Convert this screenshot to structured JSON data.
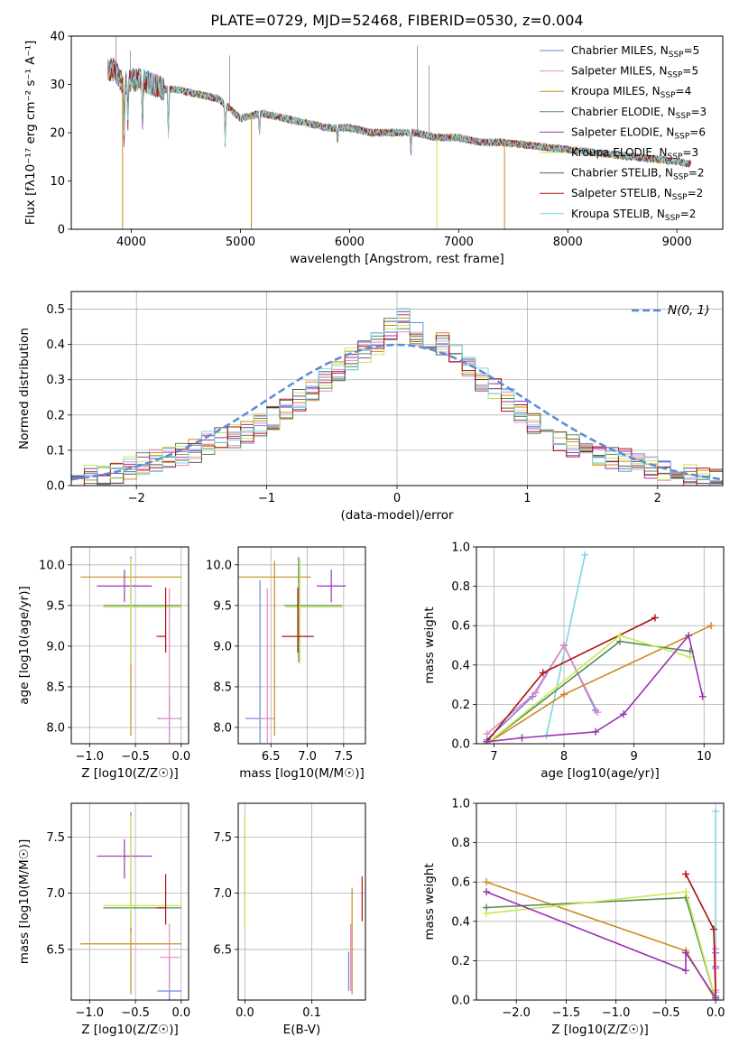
{
  "title": "PLATE=0729, MJD=52468, FIBERID=0530, z=0.004",
  "legend_items": [
    {
      "name": "Chabrier MILES",
      "nssp": "5",
      "color": "#6b86e0"
    },
    {
      "name": "Salpeter MILES",
      "nssp": "5",
      "color": "#e68ac7"
    },
    {
      "name": "Kroupa MILES",
      "nssp": "4",
      "color": "#cc8a1e"
    },
    {
      "name": "Chabrier ELODIE",
      "nssp": "3",
      "color": "#5a8a5a"
    },
    {
      "name": "Salpeter ELODIE",
      "nssp": "6",
      "color": "#9a33b0"
    },
    {
      "name": "Kroupa ELODIE",
      "nssp": "3",
      "color": "#c6ea55"
    },
    {
      "name": "Chabrier STELIB",
      "nssp": "2",
      "color": "#5a5a5a"
    },
    {
      "name": "Salpeter STELIB",
      "nssp": "2",
      "color": "#b01010"
    },
    {
      "name": "Kroupa STELIB",
      "nssp": "2",
      "color": "#7fd6e0"
    }
  ],
  "legend_nssp_prefix": "N",
  "legend_nssp_sub": "SSP",
  "legend_nssp_eq": "=",
  "chart_data": [
    {
      "id": "spectrum",
      "type": "line",
      "xlabel": "wavelength [Angstrom, rest frame]",
      "ylabel": "Flux [fλ10⁻¹⁷ erg cm⁻² s⁻¹ A⁻¹]",
      "xlim": [
        3450,
        9420
      ],
      "ylim": [
        0,
        40
      ],
      "xticks": [
        4000,
        5000,
        6000,
        7000,
        8000,
        9000
      ],
      "yticks": [
        0,
        10,
        20,
        30,
        40
      ],
      "x": [
        3780,
        3850,
        3930,
        4000,
        4100,
        4200,
        4300,
        4400,
        4600,
        4800,
        5000,
        5200,
        5400,
        5600,
        5800,
        6000,
        6200,
        6400,
        6600,
        6800,
        7000,
        7200,
        7400,
        7600,
        7800,
        8000,
        8200,
        8400,
        8600,
        8800,
        9000,
        9130
      ],
      "y": [
        33,
        33,
        30,
        31,
        31,
        30,
        29,
        29,
        28,
        27,
        23,
        24,
        23,
        22,
        21,
        21,
        20,
        20,
        20,
        19,
        19,
        18,
        18,
        17.5,
        17,
        16.5,
        16,
        15.5,
        15,
        14.5,
        14,
        13.5
      ]
    },
    {
      "id": "residuals",
      "type": "histogram",
      "xlabel": "(data-model)/error",
      "ylabel": "Normed distribution",
      "xlim": [
        -2.5,
        2.5
      ],
      "ylim": [
        0,
        0.55
      ],
      "xticks": [
        -2,
        -1,
        0,
        1,
        2
      ],
      "yticks": [
        0.0,
        0.1,
        0.2,
        0.3,
        0.4,
        0.5
      ],
      "bin_width": 0.1,
      "bin_start": -2.5,
      "values": [
        0.02,
        0.03,
        0.03,
        0.04,
        0.05,
        0.06,
        0.07,
        0.08,
        0.09,
        0.1,
        0.12,
        0.13,
        0.14,
        0.15,
        0.17,
        0.19,
        0.21,
        0.24,
        0.27,
        0.3,
        0.33,
        0.36,
        0.38,
        0.4,
        0.44,
        0.47,
        0.43,
        0.41,
        0.4,
        0.37,
        0.33,
        0.3,
        0.27,
        0.24,
        0.21,
        0.18,
        0.15,
        0.13,
        0.11,
        0.1,
        0.09,
        0.08,
        0.07,
        0.06,
        0.05,
        0.04,
        0.04,
        0.03,
        0.02,
        0.02
      ],
      "gaussian_label": "N(0, 1)"
    },
    {
      "id": "age_vs_z",
      "type": "errorbar",
      "xlabel": "Z [log10(Z/Z☉)]",
      "ylabel": "age  [log10(age/yr)]",
      "xlim": [
        -1.2,
        0.08
      ],
      "ylim": [
        7.8,
        10.22
      ],
      "xticks": [
        -1.0,
        -0.5,
        0.0
      ],
      "yticks": [
        8.0,
        8.5,
        9.0,
        9.5,
        10.0
      ],
      "points": [
        {
          "x": -0.13,
          "xerr": [
            0.13,
            0.13
          ],
          "y": 8.11,
          "yerr": [
            0.3,
            0.3
          ],
          "color": "#6b86e0"
        },
        {
          "x": -0.13,
          "xerr": [
            0.1,
            0.1
          ],
          "y": 8.11,
          "yerr": [
            0.35,
            1.6
          ],
          "color": "#e68ac7"
        },
        {
          "x": -0.55,
          "xerr": [
            0.55,
            0.55
          ],
          "y": 9.85,
          "yerr": [
            1.95,
            0.2
          ],
          "color": "#cc8a1e"
        },
        {
          "x": -0.55,
          "xerr": [
            0.3,
            0.55
          ],
          "y": 9.5,
          "yerr": [
            0.7,
            0.6
          ],
          "color": "#5a8a5a"
        },
        {
          "x": -0.62,
          "xerr": [
            0.3,
            0.3
          ],
          "y": 9.74,
          "yerr": [
            0.2,
            0.2
          ],
          "color": "#9a33b0"
        },
        {
          "x": -0.55,
          "xerr": [
            0.3,
            0.55
          ],
          "y": 9.48,
          "yerr": [
            0.7,
            0.6
          ],
          "color": "#c6ea55"
        },
        {
          "x": -0.17,
          "xerr": [
            0.1,
            0.0
          ],
          "y": 9.12,
          "yerr": [
            0.2,
            0.6
          ],
          "color": "#b01010"
        }
      ]
    },
    {
      "id": "age_vs_mass",
      "type": "errorbar",
      "xlabel": "mass [log10(M/M☉)]",
      "ylabel": "",
      "xlim": [
        6.05,
        7.8
      ],
      "ylim": [
        7.8,
        10.22
      ],
      "xticks": [
        6.5,
        7.0,
        7.5
      ],
      "yticks": [
        8.0,
        8.5,
        9.0,
        9.5,
        10.0
      ],
      "points": [
        {
          "x": 6.35,
          "xerr": [
            0.2,
            0.2
          ],
          "y": 8.11,
          "yerr": [
            0.3,
            1.7
          ],
          "color": "#6b86e0"
        },
        {
          "x": 6.45,
          "xerr": [
            0.1,
            0.1
          ],
          "y": 8.11,
          "yerr": [
            0.3,
            1.6
          ],
          "color": "#e68ac7"
        },
        {
          "x": 6.55,
          "xerr": [
            0.5,
            0.5
          ],
          "y": 9.85,
          "yerr": [
            1.95,
            0.2
          ],
          "color": "#cc8a1e"
        },
        {
          "x": 6.88,
          "xerr": [
            0.2,
            0.6
          ],
          "y": 9.5,
          "yerr": [
            0.7,
            0.6
          ],
          "color": "#5a8a5a"
        },
        {
          "x": 7.33,
          "xerr": [
            0.2,
            0.2
          ],
          "y": 9.74,
          "yerr": [
            0.2,
            0.2
          ],
          "color": "#9a33b0"
        },
        {
          "x": 6.9,
          "xerr": [
            0.2,
            0.6
          ],
          "y": 9.48,
          "yerr": [
            0.7,
            0.6
          ],
          "color": "#c6ea55"
        },
        {
          "x": 6.87,
          "xerr": [
            0.22,
            0.22
          ],
          "y": 9.12,
          "yerr": [
            0.2,
            0.6
          ],
          "color": "#b01010"
        }
      ]
    },
    {
      "id": "weight_vs_age",
      "type": "line",
      "xlabel": "age  [log10(age/yr)]",
      "ylabel": "mass weight",
      "xlim": [
        6.75,
        10.28
      ],
      "ylim": [
        0,
        1
      ],
      "xticks": [
        7,
        8,
        9,
        10
      ],
      "yticks": [
        0.0,
        0.2,
        0.4,
        0.6,
        0.8,
        1.0
      ],
      "series": [
        {
          "color": "#7fd6e0",
          "x": [
            7.75,
            8.3
          ],
          "y": [
            0.04,
            0.96
          ]
        },
        {
          "color": "#6b86e0",
          "x": [
            6.9,
            7.55,
            8.0,
            8.45
          ],
          "y": [
            0.02,
            0.24,
            0.5,
            0.17
          ]
        },
        {
          "color": "#e68ac7",
          "x": [
            6.9,
            7.6,
            8.0,
            8.48
          ],
          "y": [
            0.05,
            0.26,
            0.5,
            0.16
          ]
        },
        {
          "color": "#b01010",
          "x": [
            6.9,
            7.7,
            9.3
          ],
          "y": [
            0.01,
            0.36,
            0.64
          ]
        },
        {
          "color": "#cc8a1e",
          "x": [
            6.9,
            8.0,
            10.1
          ],
          "y": [
            0.0,
            0.25,
            0.6
          ]
        },
        {
          "color": "#5a8a5a",
          "x": [
            6.9,
            8.8,
            9.8
          ],
          "y": [
            0.0,
            0.52,
            0.47
          ]
        },
        {
          "color": "#c6ea55",
          "x": [
            6.9,
            8.8,
            9.8
          ],
          "y": [
            0.0,
            0.55,
            0.44
          ]
        },
        {
          "color": "#9a33b0",
          "x": [
            6.9,
            7.4,
            8.45,
            8.85,
            9.78,
            9.98
          ],
          "y": [
            0.01,
            0.03,
            0.06,
            0.15,
            0.55,
            0.24
          ]
        }
      ]
    },
    {
      "id": "mass_vs_z",
      "type": "errorbar",
      "xlabel": "Z [log10(Z/Z☉)]",
      "ylabel": "mass [log10(M/M☉)]",
      "xlim": [
        -1.2,
        0.08
      ],
      "ylim": [
        6.05,
        7.8
      ],
      "xticks": [
        -1.0,
        -0.5,
        0.0
      ],
      "yticks": [
        6.5,
        7.0,
        7.5
      ],
      "points": [
        {
          "x": -0.13,
          "xerr": [
            0.13,
            0.13
          ],
          "y": 6.13,
          "yerr": [
            0.1,
            0.3
          ],
          "color": "#6b86e0"
        },
        {
          "x": -0.13,
          "xerr": [
            0.1,
            0.12
          ],
          "y": 6.43,
          "yerr": [
            0.3,
            0.3
          ],
          "color": "#e68ac7"
        },
        {
          "x": -0.55,
          "xerr": [
            0.55,
            0.55
          ],
          "y": 6.55,
          "yerr": [
            0.45,
            0.5
          ],
          "color": "#cc8a1e"
        },
        {
          "x": -0.55,
          "xerr": [
            0.3,
            0.55
          ],
          "y": 6.87,
          "yerr": [
            0.2,
            0.85
          ],
          "color": "#5a8a5a"
        },
        {
          "x": -0.62,
          "xerr": [
            0.3,
            0.3
          ],
          "y": 7.33,
          "yerr": [
            0.2,
            0.15
          ],
          "color": "#9a33b0"
        },
        {
          "x": -0.55,
          "xerr": [
            0.3,
            0.55
          ],
          "y": 6.89,
          "yerr": [
            0.2,
            0.8
          ],
          "color": "#c6ea55"
        },
        {
          "x": -0.17,
          "xerr": [
            0.1,
            0.0
          ],
          "y": 6.87,
          "yerr": [
            0.15,
            0.3
          ],
          "color": "#b01010"
        }
      ]
    },
    {
      "id": "mass_vs_ebv",
      "type": "errorbar",
      "xlabel": "E(B-V)",
      "ylabel": "",
      "xlim": [
        -0.01,
        0.18
      ],
      "ylim": [
        6.05,
        7.8
      ],
      "xticks": [
        0.0,
        0.1
      ],
      "yticks": [
        6.5,
        7.0,
        7.5
      ],
      "points": [
        {
          "x": 0.155,
          "xerr": [
            0,
            0
          ],
          "y": 6.13,
          "yerr": [
            0.0,
            0.35
          ],
          "color": "#6b86e0"
        },
        {
          "x": 0.158,
          "xerr": [
            0,
            0
          ],
          "y": 6.43,
          "yerr": [
            0.3,
            0.3
          ],
          "color": "#e68ac7"
        },
        {
          "x": 0.16,
          "xerr": [
            0,
            0
          ],
          "y": 6.55,
          "yerr": [
            0.45,
            0.5
          ],
          "color": "#cc8a1e"
        },
        {
          "x": 0.0,
          "xerr": [
            0,
            0
          ],
          "y": 7.2,
          "yerr": [
            0.5,
            0.5
          ],
          "color": "#5a8a5a"
        },
        {
          "x": 0.0,
          "xerr": [
            0,
            0
          ],
          "y": 7.2,
          "yerr": [
            0.5,
            0.5
          ],
          "color": "#c6ea55"
        },
        {
          "x": 0.175,
          "xerr": [
            0,
            0
          ],
          "y": 6.95,
          "yerr": [
            0.2,
            0.2
          ],
          "color": "#b01010"
        }
      ]
    },
    {
      "id": "weight_vs_z",
      "type": "line",
      "xlabel": "Z [log10(Z/Z☉)]",
      "ylabel": "mass weight",
      "xlim": [
        -2.4,
        0.08
      ],
      "ylim": [
        0,
        1
      ],
      "xticks": [
        -2.0,
        -1.5,
        -1.0,
        -0.5,
        0.0
      ],
      "yticks": [
        0.0,
        0.2,
        0.4,
        0.6,
        0.8,
        1.0
      ],
      "series": [
        {
          "color": "#7fd6e0",
          "x": [
            0.0,
            0.0
          ],
          "y": [
            0.04,
            0.96
          ]
        },
        {
          "color": "#6b86e0",
          "x": [
            0.0,
            0.0,
            0.0
          ],
          "y": [
            0.02,
            0.24,
            0.17
          ]
        },
        {
          "color": "#e68ac7",
          "x": [
            0.0,
            0.0,
            0.0
          ],
          "y": [
            0.05,
            0.26,
            0.16
          ]
        },
        {
          "color": "#b01010",
          "x": [
            -0.3,
            -0.02,
            0.0
          ],
          "y": [
            0.64,
            0.36,
            0.01
          ]
        },
        {
          "color": "#cc8a1e",
          "x": [
            -2.3,
            -0.3,
            0.0
          ],
          "y": [
            0.6,
            0.25,
            0.0
          ]
        },
        {
          "color": "#5a8a5a",
          "x": [
            -2.3,
            -0.3,
            0.0
          ],
          "y": [
            0.47,
            0.52,
            0.0
          ]
        },
        {
          "color": "#c6ea55",
          "x": [
            -2.3,
            -0.3,
            0.0
          ],
          "y": [
            0.44,
            0.55,
            0.0
          ]
        },
        {
          "color": "#9a33b0",
          "x": [
            -2.3,
            -0.3,
            -0.3,
            0.0
          ],
          "y": [
            0.55,
            0.15,
            0.24,
            0.01
          ]
        }
      ]
    }
  ]
}
